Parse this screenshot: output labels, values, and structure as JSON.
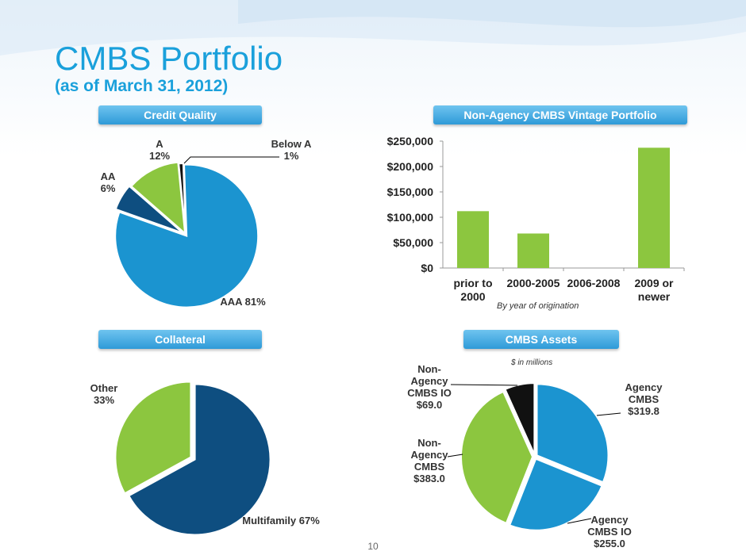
{
  "title": "CMBS Portfolio",
  "subtitle": "(as of March 31, 2012)",
  "page_number": "10",
  "colors": {
    "title": "#1aa0db",
    "blue": "#1b94d0",
    "dark_blue": "#0e4e80",
    "green": "#8cc63f",
    "black": "#111111",
    "label_bg": "#3aa3dc"
  },
  "sections": {
    "credit_quality": "Credit Quality",
    "vintage": "Non-Agency CMBS Vintage Portfolio",
    "collateral": "Collateral",
    "cmbs_assets": "CMBS Assets"
  },
  "notes": {
    "by_year": "By year of origination",
    "in_millions": "$ in millions"
  },
  "chart_data": [
    {
      "id": "credit_quality",
      "type": "pie",
      "slices": [
        {
          "label": "AAA 81%",
          "value": 81,
          "color": "#1b94d0"
        },
        {
          "label_lines": [
            "AA",
            "6%"
          ],
          "value": 6,
          "color": "#0e4e80"
        },
        {
          "label_lines": [
            "A",
            "12%"
          ],
          "value": 12,
          "color": "#8cc63f"
        },
        {
          "label_lines": [
            "Below A",
            "1%"
          ],
          "value": 1,
          "color": "#111111"
        }
      ]
    },
    {
      "id": "vintage",
      "type": "bar",
      "categories": [
        [
          "prior to",
          "2000"
        ],
        [
          "2000-2005"
        ],
        [
          "2006-2008"
        ],
        [
          "2009 or",
          "newer"
        ]
      ],
      "values": [
        112000,
        68000,
        0,
        237000
      ],
      "y_ticks": [
        "$0",
        "$50,000",
        "$100,000",
        "$150,000",
        "$200,000",
        "$250,000"
      ],
      "ylim": [
        0,
        250000
      ],
      "color": "#8cc63f",
      "grid": false
    },
    {
      "id": "collateral",
      "type": "pie",
      "slices": [
        {
          "label": "Multifamily 67%",
          "value": 67,
          "color": "#0e4e80"
        },
        {
          "label_lines": [
            "Other",
            "33%"
          ],
          "value": 33,
          "color": "#8cc63f"
        }
      ]
    },
    {
      "id": "cmbs_assets",
      "type": "pie",
      "slices": [
        {
          "label_lines": [
            "Agency",
            "CMBS",
            "$319.8"
          ],
          "value": 319.8,
          "color": "#1b94d0"
        },
        {
          "label_lines": [
            "Agency",
            "CMBS IO",
            "$255.0"
          ],
          "value": 255.0,
          "color": "#1b94d0"
        },
        {
          "label_lines": [
            "Non-",
            "Agency",
            "CMBS",
            "$383.0"
          ],
          "value": 383.0,
          "color": "#8cc63f"
        },
        {
          "label_lines": [
            "Non-",
            "Agency",
            "CMBS IO",
            "$69.0"
          ],
          "value": 69.0,
          "color": "#111111"
        }
      ]
    }
  ]
}
